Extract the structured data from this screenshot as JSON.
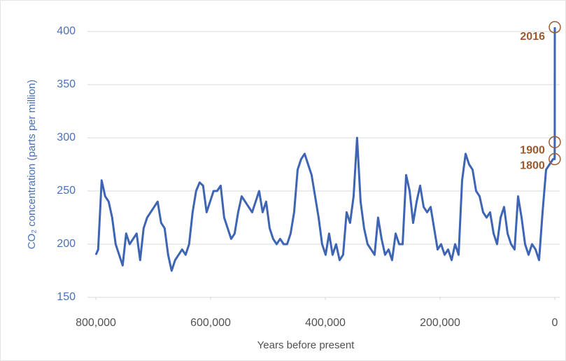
{
  "chart_data": {
    "type": "line",
    "ylabel": "CO₂ concentration (parts per million)",
    "xlabel": "Years before present",
    "color": "#3e64b4",
    "x": [
      800000,
      796000,
      789900,
      783800,
      777700,
      771600,
      765500,
      759400,
      753300,
      747200,
      741100,
      735000,
      728900,
      722800,
      716700,
      710600,
      704500,
      698400,
      692300,
      686200,
      680100,
      674000,
      667900,
      661800,
      655700,
      649600,
      643500,
      637400,
      631300,
      625200,
      619100,
      613000,
      606900,
      600800,
      594700,
      588600,
      582500,
      576400,
      570300,
      564200,
      558100,
      552000,
      545900,
      539800,
      533700,
      527600,
      521500,
      515400,
      509300,
      503200,
      497100,
      491000,
      484900,
      478800,
      472700,
      466600,
      460500,
      454400,
      448300,
      442200,
      436100,
      430000,
      423900,
      417800,
      411700,
      405600,
      399500,
      393400,
      387300,
      381200,
      375100,
      369000,
      362900,
      356800,
      350700,
      344600,
      338500,
      332400,
      326300,
      320200,
      314100,
      308000,
      301900,
      295800,
      289700,
      283600,
      277500,
      271400,
      265300,
      259200,
      253100,
      247000,
      240900,
      234800,
      228700,
      222600,
      216500,
      210400,
      204300,
      198200,
      192100,
      186000,
      179900,
      173800,
      167700,
      161600,
      155500,
      149400,
      143300,
      137200,
      131100,
      125000,
      118900,
      112800,
      106700,
      100600,
      94500,
      88400,
      82300,
      76200,
      70100,
      64000,
      57900,
      51800,
      45700,
      39600,
      33500,
      27400,
      21300,
      15200,
      9100,
      3000,
      216,
      116,
      0
    ],
    "values": [
      190,
      195,
      260,
      245,
      240,
      225,
      200,
      190,
      180,
      210,
      200,
      205,
      210,
      185,
      215,
      225,
      230,
      235,
      240,
      220,
      215,
      190,
      175,
      185,
      190,
      195,
      190,
      200,
      230,
      250,
      258,
      255,
      230,
      240,
      250,
      250,
      255,
      225,
      215,
      205,
      210,
      230,
      245,
      240,
      235,
      230,
      240,
      250,
      230,
      240,
      215,
      205,
      200,
      205,
      200,
      200,
      210,
      230,
      270,
      280,
      285,
      275,
      265,
      245,
      225,
      200,
      190,
      210,
      190,
      200,
      185,
      190,
      230,
      220,
      245,
      300,
      240,
      215,
      200,
      195,
      190,
      225,
      205,
      190,
      195,
      185,
      210,
      200,
      200,
      265,
      250,
      220,
      240,
      255,
      235,
      230,
      235,
      215,
      195,
      200,
      190,
      195,
      185,
      200,
      190,
      260,
      285,
      275,
      270,
      250,
      245,
      230,
      225,
      230,
      210,
      200,
      225,
      235,
      210,
      200,
      195,
      245,
      225,
      200,
      190,
      200,
      195,
      185,
      230,
      270,
      275,
      280,
      280,
      296,
      404
    ],
    "xlim": [
      800000,
      0
    ],
    "xticks": [
      {
        "value": 800000,
        "label": "800,000"
      },
      {
        "value": 600000,
        "label": "600,000"
      },
      {
        "value": 400000,
        "label": "400,000"
      },
      {
        "value": 200000,
        "label": "200,000"
      },
      0
    ],
    "ylim": [
      150,
      400
    ],
    "yticks": [
      150,
      200,
      250,
      300,
      350,
      400
    ],
    "grid": true,
    "annotations": [
      {
        "label": "2016",
        "x": 0,
        "y": 404
      },
      {
        "label": "1900",
        "x": 116,
        "y": 296
      },
      {
        "label": "1800",
        "x": 216,
        "y": 280
      }
    ],
    "annotation_color": "#9c5a2c"
  }
}
